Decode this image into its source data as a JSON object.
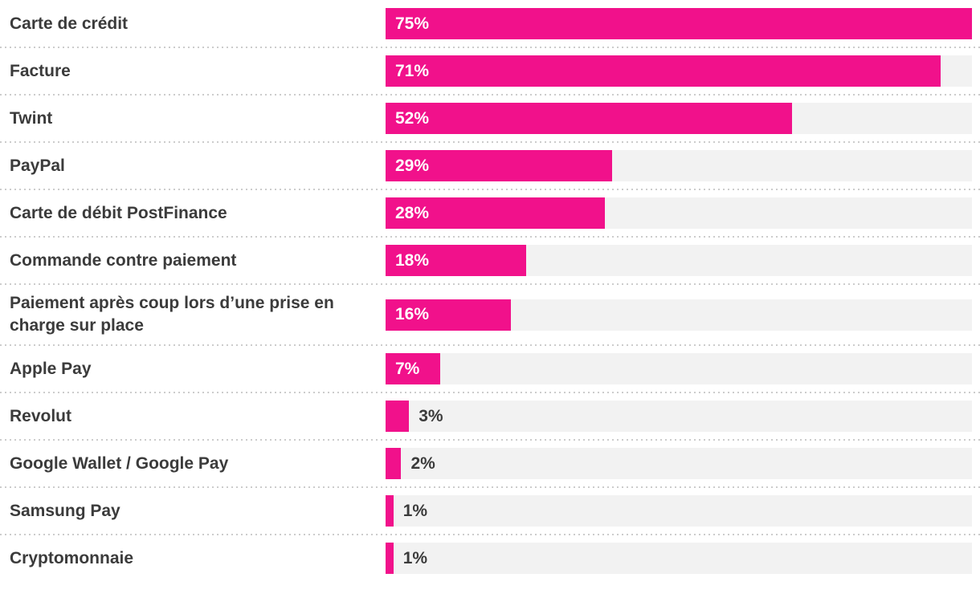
{
  "chart_data": {
    "type": "bar",
    "orientation": "horizontal",
    "title": "",
    "categories": [
      "Carte de crédit",
      "Facture",
      "Twint",
      "PayPal",
      "Carte de débit PostFinance",
      "Commande contre paiement",
      "Paiement après coup lors d’une prise en charge sur place",
      "Apple Pay",
      "Revolut",
      "Google Wallet / Google Pay",
      "Samsung Pay",
      "Cryptomonnaie"
    ],
    "values": [
      75,
      71,
      52,
      29,
      28,
      18,
      16,
      7,
      3,
      2,
      1,
      1
    ],
    "value_labels": [
      "75%",
      "71%",
      "52%",
      "29%",
      "28%",
      "18%",
      "16%",
      "7%",
      "3%",
      "2%",
      "1%",
      "1%"
    ],
    "value_suffix": "%",
    "layout": {
      "scale_max": 75,
      "value_label_inside_min": 7,
      "grid": false,
      "axes_shown": false,
      "separator_style": "dotted"
    },
    "colors": {
      "bar": "#f1118b",
      "track": "#f2f2f2",
      "label_text": "#3b3b3b",
      "value_text_inside": "#ffffff",
      "separator": "#cccccc"
    }
  }
}
